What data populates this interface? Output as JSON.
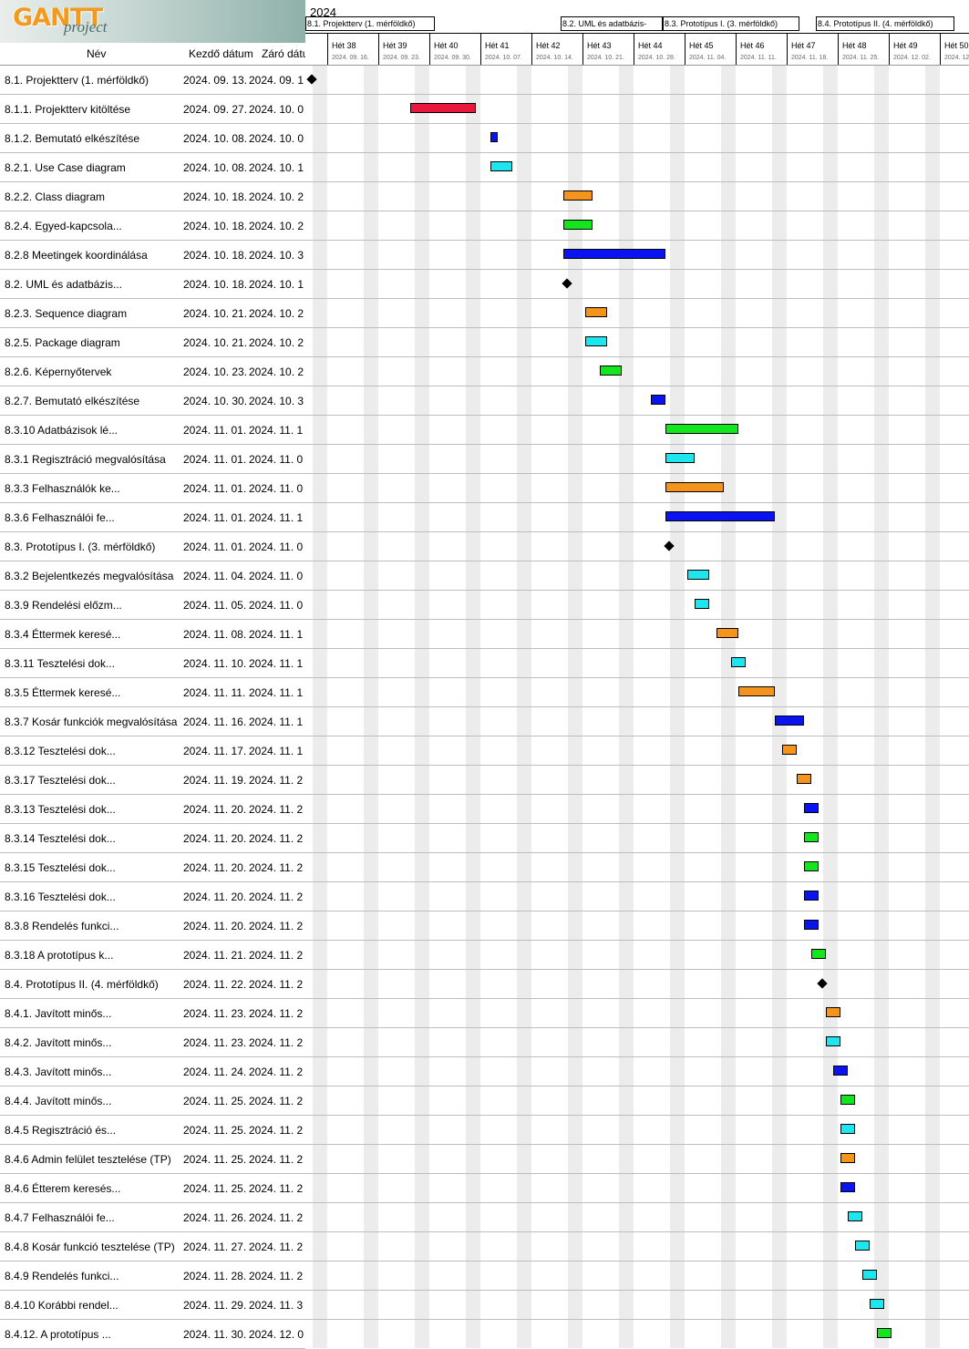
{
  "app": {
    "brand": "GANTT",
    "sub": "project"
  },
  "table": {
    "headers": {
      "name": "Név",
      "start": "Kezdő dátum",
      "end": "Záró dátum"
    }
  },
  "timeline": {
    "year": "2024",
    "milestone_labels": [
      "8.1. Projektterv (1. mérföldkő)",
      "8.2. UML és adatbázis-",
      "8.3. Prototípus I. (3. mérföldkő)",
      "8.4. Prototípus II. (4. mérföldkő)"
    ],
    "weeks": [
      {
        "label": "Hét 38",
        "date": "2024. 09. 16."
      },
      {
        "label": "Hét 39",
        "date": "2024. 09. 23."
      },
      {
        "label": "Hét 40",
        "date": "2024. 09. 30."
      },
      {
        "label": "Hét 41",
        "date": "2024. 10. 07."
      },
      {
        "label": "Hét 42",
        "date": "2024. 10. 14."
      },
      {
        "label": "Hét 43",
        "date": "2024. 10. 21."
      },
      {
        "label": "Hét 44",
        "date": "2024. 10. 28."
      },
      {
        "label": "Hét 45",
        "date": "2024. 11. 04."
      },
      {
        "label": "Hét 46",
        "date": "2024. 11. 11."
      },
      {
        "label": "Hét 47",
        "date": "2024. 11. 18."
      },
      {
        "label": "Hét 48",
        "date": "2024. 11. 25."
      },
      {
        "label": "Hét 49",
        "date": "2024. 12. 02."
      },
      {
        "label": "Hét 50",
        "date": "2024. 12."
      }
    ]
  },
  "colors": {
    "red": "#e8173b",
    "blue": "#0a14f0",
    "cyan": "#1ee6ef",
    "orange": "#f5941d",
    "green": "#14e61e",
    "milestone": "#000000"
  },
  "tasks": [
    {
      "name": "8.1. Projektterv (1. mérföldkő)",
      "start": "2024. 09. 13.",
      "end": "2024. 09. 1",
      "color": "milestone",
      "milestone": true,
      "d0": 0,
      "days": 0
    },
    {
      "name": "8.1.1. Projektterv kitöltése",
      "start": "2024. 09. 27.",
      "end": "2024. 10. 0",
      "color": "red",
      "d0": 14,
      "days": 9
    },
    {
      "name": "8.1.2. Bemutató elkészítése",
      "start": "2024. 10. 08.",
      "end": "2024. 10. 0",
      "color": "blue",
      "d0": 25,
      "days": 1
    },
    {
      "name": "8.2.1. Use Case diagram",
      "start": "2024. 10. 08.",
      "end": "2024. 10. 1",
      "color": "cyan",
      "d0": 25,
      "days": 3
    },
    {
      "name": "8.2.2. Class diagram",
      "start": "2024. 10. 18.",
      "end": "2024. 10. 2",
      "color": "orange",
      "d0": 35,
      "days": 4
    },
    {
      "name": "8.2.4. Egyed-kapcsola...",
      "start": "2024. 10. 18.",
      "end": "2024. 10. 2",
      "color": "green",
      "d0": 35,
      "days": 4
    },
    {
      "name": "8.2.8 Meetingek koordinálása",
      "start": "2024. 10. 18.",
      "end": "2024. 10. 3",
      "color": "blue",
      "d0": 35,
      "days": 14
    },
    {
      "name": "8.2. UML és adatbázis...",
      "start": "2024. 10. 18.",
      "end": "2024. 10. 1",
      "color": "milestone",
      "milestone": true,
      "d0": 35,
      "days": 0
    },
    {
      "name": "8.2.3. Sequence diagram",
      "start": "2024. 10. 21.",
      "end": "2024. 10. 2",
      "color": "orange",
      "d0": 38,
      "days": 3
    },
    {
      "name": "8.2.5. Package diagram",
      "start": "2024. 10. 21.",
      "end": "2024. 10. 2",
      "color": "cyan",
      "d0": 38,
      "days": 3
    },
    {
      "name": "8.2.6. Képernyőtervek",
      "start": "2024. 10. 23.",
      "end": "2024. 10. 2",
      "color": "green",
      "d0": 40,
      "days": 3
    },
    {
      "name": "8.2.7. Bemutató elkészítése",
      "start": "2024. 10. 30.",
      "end": "2024. 10. 3",
      "color": "blue",
      "d0": 47,
      "days": 2
    },
    {
      "name": "8.3.10 Adatbázisok lé...",
      "start": "2024. 11. 01.",
      "end": "2024. 11. 1",
      "color": "green",
      "d0": 49,
      "days": 10
    },
    {
      "name": "8.3.1 Regisztráció megvalósítása",
      "start": "2024. 11. 01.",
      "end": "2024. 11. 0",
      "color": "cyan",
      "d0": 49,
      "days": 4
    },
    {
      "name": "8.3.3 Felhasználók ke...",
      "start": "2024. 11. 01.",
      "end": "2024. 11. 0",
      "color": "orange",
      "d0": 49,
      "days": 8
    },
    {
      "name": "8.3.6 Felhasználói fe...",
      "start": "2024. 11. 01.",
      "end": "2024. 11. 1",
      "color": "blue",
      "d0": 49,
      "days": 15
    },
    {
      "name": "8.3. Prototípus I. (3. mérföldkő)",
      "start": "2024. 11. 01.",
      "end": "2024. 11. 0",
      "color": "milestone",
      "milestone": true,
      "d0": 49,
      "days": 0
    },
    {
      "name": "8.3.2 Bejelentkezés megvalósítása",
      "start": "2024. 11. 04.",
      "end": "2024. 11. 0",
      "color": "cyan",
      "d0": 52,
      "days": 3
    },
    {
      "name": "8.3.9 Rendelési előzm...",
      "start": "2024. 11. 05.",
      "end": "2024. 11. 0",
      "color": "cyan",
      "d0": 53,
      "days": 2
    },
    {
      "name": "8.3.4 Éttermek keresé...",
      "start": "2024. 11. 08.",
      "end": "2024. 11. 1",
      "color": "orange",
      "d0": 56,
      "days": 3
    },
    {
      "name": "8.3.11 Tesztelési dok...",
      "start": "2024. 11. 10.",
      "end": "2024. 11. 1",
      "color": "cyan",
      "d0": 58,
      "days": 2
    },
    {
      "name": "8.3.5 Éttermek keresé...",
      "start": "2024. 11. 11.",
      "end": "2024. 11. 1",
      "color": "orange",
      "d0": 59,
      "days": 5
    },
    {
      "name": "8.3.7 Kosár funkciók megvalósítása",
      "start": "2024. 11. 16.",
      "end": "2024. 11. 1",
      "color": "blue",
      "d0": 64,
      "days": 4
    },
    {
      "name": "8.3.12 Tesztelési dok...",
      "start": "2024. 11. 17.",
      "end": "2024. 11. 1",
      "color": "orange",
      "d0": 65,
      "days": 2
    },
    {
      "name": "8.3.17 Tesztelési dok...",
      "start": "2024. 11. 19.",
      "end": "2024. 11. 2",
      "color": "orange",
      "d0": 67,
      "days": 2
    },
    {
      "name": "8.3.13 Tesztelési dok...",
      "start": "2024. 11. 20.",
      "end": "2024. 11. 2",
      "color": "blue",
      "d0": 68,
      "days": 2
    },
    {
      "name": "8.3.14 Tesztelési dok...",
      "start": "2024. 11. 20.",
      "end": "2024. 11. 2",
      "color": "green",
      "d0": 68,
      "days": 2
    },
    {
      "name": "8.3.15 Tesztelési dok...",
      "start": "2024. 11. 20.",
      "end": "2024. 11. 2",
      "color": "green",
      "d0": 68,
      "days": 2
    },
    {
      "name": "8.3.16 Tesztelési dok...",
      "start": "2024. 11. 20.",
      "end": "2024. 11. 2",
      "color": "blue",
      "d0": 68,
      "days": 2
    },
    {
      "name": "8.3.8 Rendelés funkci...",
      "start": "2024. 11. 20.",
      "end": "2024. 11. 2",
      "color": "blue",
      "d0": 68,
      "days": 2
    },
    {
      "name": "8.3.18 A prototípus k...",
      "start": "2024. 11. 21.",
      "end": "2024. 11. 2",
      "color": "green",
      "d0": 69,
      "days": 2
    },
    {
      "name": "8.4. Prototípus II. (4. mérföldkő)",
      "start": "2024. 11. 22.",
      "end": "2024. 11. 2",
      "color": "milestone",
      "milestone": true,
      "d0": 70,
      "days": 0
    },
    {
      "name": "8.4.1. Javított minős...",
      "start": "2024. 11. 23.",
      "end": "2024. 11. 2",
      "color": "orange",
      "d0": 71,
      "days": 2
    },
    {
      "name": "8.4.2. Javított minős...",
      "start": "2024. 11. 23.",
      "end": "2024. 11. 2",
      "color": "cyan",
      "d0": 71,
      "days": 2
    },
    {
      "name": "8.4.3. Javított minős...",
      "start": "2024. 11. 24.",
      "end": "2024. 11. 2",
      "color": "blue",
      "d0": 72,
      "days": 2
    },
    {
      "name": "8.4.4. Javított minős...",
      "start": "2024. 11. 25.",
      "end": "2024. 11. 2",
      "color": "green",
      "d0": 73,
      "days": 2
    },
    {
      "name": "8.4.5 Regisztráció és...",
      "start": "2024. 11. 25.",
      "end": "2024. 11. 2",
      "color": "cyan",
      "d0": 73,
      "days": 2
    },
    {
      "name": "8.4.6 Admin felület tesztelése (TP)",
      "start": "2024. 11. 25.",
      "end": "2024. 11. 2",
      "color": "orange",
      "d0": 73,
      "days": 2
    },
    {
      "name": "8.4.6 Étterem keresés...",
      "start": "2024. 11. 25.",
      "end": "2024. 11. 2",
      "color": "blue",
      "d0": 73,
      "days": 2
    },
    {
      "name": "8.4.7 Felhasználói fe...",
      "start": "2024. 11. 26.",
      "end": "2024. 11. 2",
      "color": "cyan",
      "d0": 74,
      "days": 2
    },
    {
      "name": "8.4.8 Kosár funkció tesztelése (TP)",
      "start": "2024. 11. 27.",
      "end": "2024. 11. 2",
      "color": "cyan",
      "d0": 75,
      "days": 2
    },
    {
      "name": "8.4.9 Rendelés funkci...",
      "start": "2024. 11. 28.",
      "end": "2024. 11. 2",
      "color": "cyan",
      "d0": 76,
      "days": 2
    },
    {
      "name": "8.4.10 Korábbi rendel...",
      "start": "2024. 11. 29.",
      "end": "2024. 11. 3",
      "color": "cyan",
      "d0": 77,
      "days": 2
    },
    {
      "name": "8.4.12. A prototípus ...",
      "start": "2024. 11. 30.",
      "end": "2024. 12. 0",
      "color": "green",
      "d0": 78,
      "days": 2
    }
  ]
}
